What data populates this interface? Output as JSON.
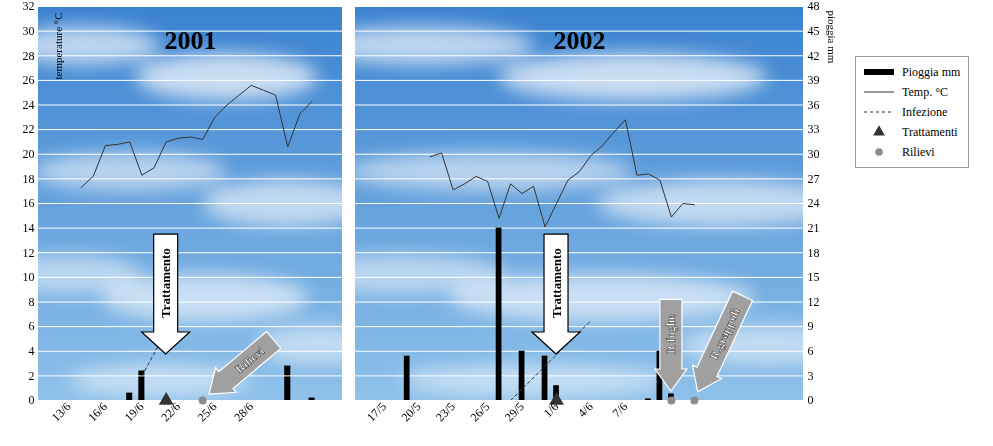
{
  "chart_data": [
    {
      "type": "line",
      "title": "2001",
      "categories": [
        null,
        null,
        "13/6",
        null,
        null,
        "16/6",
        null,
        null,
        "19/6",
        null,
        null,
        "22/6",
        null,
        null,
        "25/6",
        null,
        null,
        "28/6",
        null,
        null,
        null,
        null,
        null,
        null,
        null
      ],
      "ylim": [
        0,
        32
      ],
      "yticks": [
        0,
        2,
        4,
        6,
        8,
        10,
        12,
        14,
        16,
        18,
        20,
        22,
        24,
        26,
        28,
        30,
        32
      ],
      "y_label": "temperature °C",
      "y2lim": [
        0,
        48
      ],
      "grid": true,
      "series": [
        {
          "name": "Pioggia mm",
          "type": "bar",
          "axis": "y2",
          "color": "#000000",
          "values": [
            null,
            null,
            null,
            null,
            null,
            null,
            null,
            0.9,
            3.6,
            null,
            null,
            null,
            null,
            null,
            null,
            null,
            null,
            null,
            null,
            null,
            4.2,
            null,
            0.3,
            null,
            null
          ]
        },
        {
          "name": "Temp. °C",
          "type": "line",
          "color": "#333333",
          "values": [
            null,
            null,
            null,
            17.3,
            18.2,
            20.7,
            20.8,
            21.0,
            18.3,
            18.9,
            21.0,
            21.3,
            21.4,
            21.2,
            23.0,
            24.0,
            24.8,
            25.6,
            25.2,
            24.8,
            20.6,
            23.3,
            24.3,
            null,
            null
          ]
        },
        {
          "name": "Infezione",
          "type": "line",
          "line_style": "dotted",
          "color": "#333333",
          "values": [
            null,
            null,
            null,
            null,
            null,
            null,
            null,
            null,
            2.0,
            null,
            null,
            7.4,
            null,
            null,
            null,
            null,
            null,
            null,
            null,
            null,
            null,
            null,
            null,
            null,
            null
          ]
        },
        {
          "name": "Trattamenti",
          "type": "scatter",
          "marker": "triangle",
          "color": "#333333",
          "values": [
            null,
            null,
            null,
            null,
            null,
            null,
            null,
            null,
            null,
            null,
            0,
            null,
            null,
            null,
            null,
            null,
            null,
            null,
            null,
            null,
            null,
            null,
            null,
            null,
            null
          ]
        },
        {
          "name": "Rilievi",
          "type": "scatter",
          "marker": "circle",
          "color": "#8c8c8c",
          "values": [
            null,
            null,
            null,
            null,
            null,
            null,
            null,
            null,
            null,
            null,
            null,
            null,
            null,
            0,
            null,
            null,
            null,
            null,
            null,
            null,
            null,
            null,
            null,
            null,
            null
          ]
        }
      ],
      "annotations": [
        {
          "text": "Trattamento",
          "x": 10
        },
        {
          "text": "Rilievi",
          "x": 13
        }
      ]
    },
    {
      "type": "line",
      "title": "2002",
      "categories": [
        null,
        null,
        "17/5",
        null,
        null,
        "20/5",
        null,
        null,
        "23/5",
        null,
        null,
        "26/5",
        null,
        null,
        "29/5",
        null,
        null,
        "1/6",
        null,
        null,
        "4/6",
        null,
        null,
        "7/6",
        null,
        null,
        null,
        null,
        null,
        null,
        null,
        null,
        null,
        null,
        null,
        null,
        null,
        null,
        null
      ],
      "ylim": [
        0,
        32
      ],
      "y2lim": [
        0,
        48
      ],
      "y2ticks": [
        0,
        3,
        6,
        9,
        12,
        15,
        18,
        21,
        24,
        27,
        30,
        33,
        36,
        39,
        42,
        45,
        48
      ],
      "y2_label": "pioggia mm",
      "grid": true,
      "legend": "right",
      "series": [
        {
          "name": "Pioggia mm",
          "type": "bar",
          "axis": "y2",
          "color": "#000000",
          "values": [
            null,
            null,
            null,
            null,
            5.4,
            null,
            null,
            null,
            null,
            null,
            null,
            null,
            21,
            null,
            6.0,
            null,
            5.4,
            1.8,
            null,
            null,
            null,
            null,
            null,
            null,
            null,
            0.2,
            6.0,
            0.8,
            null,
            null,
            null,
            null,
            null,
            null,
            null,
            null,
            null,
            null,
            null
          ]
        },
        {
          "name": "Temp. °C",
          "type": "line",
          "color": "#333333",
          "values": [
            null,
            null,
            null,
            null,
            null,
            null,
            19.8,
            20.1,
            17.1,
            17.6,
            18.2,
            17.8,
            14.8,
            17.6,
            16.8,
            17.4,
            14.1,
            16.0,
            17.9,
            18.6,
            19.9,
            20.7,
            21.8,
            22.8,
            18.3,
            18.4,
            17.9,
            14.9,
            16.0,
            15.9,
            null,
            null,
            null,
            null,
            null,
            null,
            null,
            null,
            null
          ]
        },
        {
          "name": "Infezione",
          "type": "line",
          "line_style": "dotted",
          "color": "#333333",
          "values": [
            null,
            null,
            null,
            null,
            null,
            null,
            null,
            null,
            null,
            null,
            null,
            null,
            null,
            0,
            null,
            null,
            null,
            null,
            null,
            null,
            6.5,
            null,
            null,
            null,
            null,
            null,
            null,
            null,
            null,
            null,
            null,
            null,
            null,
            null,
            null,
            null,
            null,
            null,
            null
          ]
        },
        {
          "name": "Trattamenti",
          "type": "scatter",
          "marker": "triangle",
          "color": "#333333",
          "values": [
            null,
            null,
            null,
            null,
            null,
            null,
            null,
            null,
            null,
            null,
            null,
            null,
            null,
            null,
            null,
            null,
            null,
            0,
            null,
            null,
            null,
            null,
            null,
            null,
            null,
            null,
            null,
            null,
            null,
            null,
            null,
            null,
            null,
            null,
            null,
            null,
            null,
            null,
            null
          ]
        },
        {
          "name": "Rilievi",
          "type": "scatter",
          "marker": "circle",
          "color": "#8c8c8c",
          "values": [
            null,
            null,
            null,
            null,
            null,
            null,
            null,
            null,
            null,
            null,
            null,
            null,
            null,
            null,
            null,
            null,
            null,
            null,
            null,
            null,
            null,
            null,
            null,
            null,
            null,
            null,
            null,
            0,
            null,
            0,
            null,
            null,
            null,
            null,
            null,
            null,
            null,
            null,
            null
          ]
        }
      ],
      "annotations": [
        {
          "text": "Trattamento",
          "x": 17
        },
        {
          "text": "R.foglie",
          "x": 27
        },
        {
          "text": "R.grappoli",
          "x": 29
        }
      ]
    }
  ]
}
